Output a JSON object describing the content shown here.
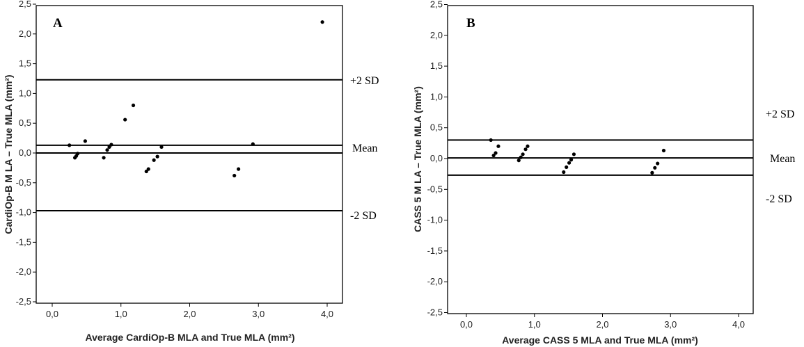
{
  "chart_data": [
    {
      "type": "scatter",
      "panel": "A",
      "xlabel": "Average CardiOp-B MLA and  True MLA  (mm²)",
      "ylabel": "CardiOp-B M LA – True MLA  (mm²)",
      "xlim": [
        -0.3,
        4.2
      ],
      "ylim": [
        -2.5,
        2.5
      ],
      "x_ticks": [
        "0,0",
        "1,0",
        "2,0",
        "3,0",
        "4,0"
      ],
      "y_ticks": [
        "-2,5",
        "-2,0",
        "-1,5",
        "-1,0",
        "-0,5",
        "0,0",
        "0,5",
        "1,0",
        "1,5",
        "2,0",
        "2,5"
      ],
      "reference_lines": [
        {
          "label": "+2 SD",
          "y": 1.23
        },
        {
          "label": "Mean",
          "y": 0.13
        },
        {
          "label": "",
          "y": 0.0
        },
        {
          "label": "-2 SD",
          "y": -0.97
        }
      ],
      "points": [
        [
          0.25,
          0.13
        ],
        [
          0.33,
          -0.08
        ],
        [
          0.35,
          -0.05
        ],
        [
          0.37,
          -0.01
        ],
        [
          0.48,
          0.2
        ],
        [
          0.75,
          -0.08
        ],
        [
          0.8,
          0.05
        ],
        [
          0.83,
          0.1
        ],
        [
          0.86,
          0.14
        ],
        [
          1.06,
          0.56
        ],
        [
          1.18,
          0.8
        ],
        [
          1.37,
          -0.31
        ],
        [
          1.4,
          -0.27
        ],
        [
          1.48,
          -0.12
        ],
        [
          1.53,
          -0.06
        ],
        [
          1.59,
          0.1
        ],
        [
          2.65,
          -0.38
        ],
        [
          2.71,
          -0.27
        ],
        [
          2.92,
          0.15
        ],
        [
          3.93,
          2.2
        ]
      ]
    },
    {
      "type": "scatter",
      "panel": "B",
      "xlabel": "Average CASS 5 MLA and True MLA (mm²)",
      "ylabel": "CASS 5 M LA – True MLA  (mm²)",
      "xlim": [
        -0.3,
        4.2
      ],
      "ylim": [
        -2.5,
        2.5
      ],
      "x_ticks": [
        "0,0",
        "1,0",
        "2,0",
        "3,0",
        "4,0"
      ],
      "y_ticks": [
        "-2,5",
        "-2,0",
        "-1,5",
        "-1,0",
        "-0,5",
        "0,0",
        "0,5",
        "1,0",
        "1,5",
        "2,0",
        "2,5"
      ],
      "reference_lines": [
        {
          "label": "+2 SD",
          "y": 0.3
        },
        {
          "label": "Mean",
          "y": 0.01
        },
        {
          "label": "-2 SD",
          "y": -0.27
        }
      ],
      "points": [
        [
          0.36,
          0.3
        ],
        [
          0.4,
          0.05
        ],
        [
          0.43,
          0.09
        ],
        [
          0.47,
          0.2
        ],
        [
          0.77,
          -0.03
        ],
        [
          0.8,
          0.02
        ],
        [
          0.83,
          0.07
        ],
        [
          0.87,
          0.15
        ],
        [
          0.9,
          0.2
        ],
        [
          1.43,
          -0.22
        ],
        [
          1.47,
          -0.14
        ],
        [
          1.51,
          -0.07
        ],
        [
          1.54,
          -0.02
        ],
        [
          1.58,
          0.07
        ],
        [
          2.73,
          -0.23
        ],
        [
          2.77,
          -0.15
        ],
        [
          2.81,
          -0.08
        ],
        [
          2.9,
          0.13
        ]
      ]
    }
  ],
  "label_text": {
    "panel_a": "A",
    "panel_b": "B",
    "plus2sd": "+2 SD",
    "mean": "Mean",
    "minus2sd": "-2 SD"
  }
}
